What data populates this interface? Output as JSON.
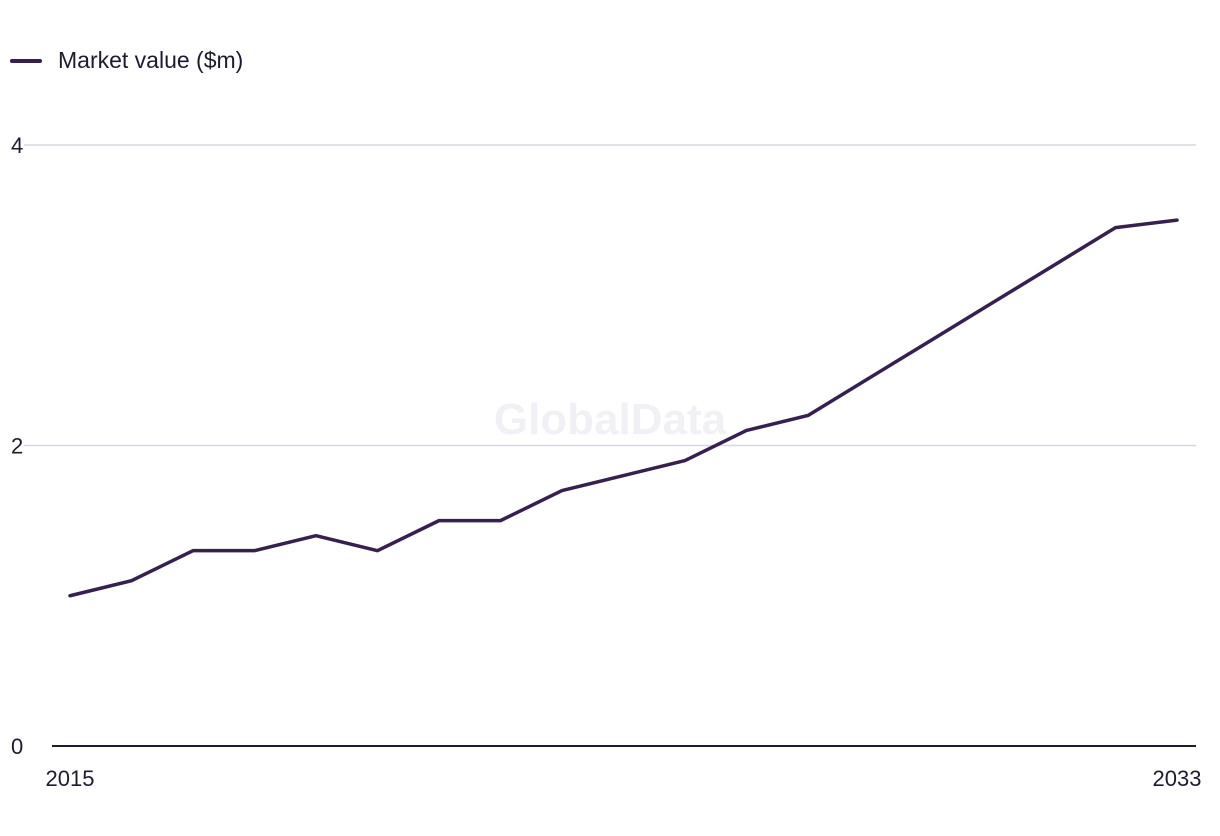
{
  "legend": {
    "label": "Market value ($m)"
  },
  "watermark": "GlobalData",
  "colors": {
    "series": "#35204f",
    "grid": "#d8d6df",
    "axis": "#1f1b2e"
  },
  "chart_data": {
    "type": "line",
    "title": "",
    "xlabel": "",
    "ylabel": "",
    "x": [
      2015,
      2016,
      2017,
      2018,
      2019,
      2020,
      2021,
      2022,
      2023,
      2024,
      2025,
      2026,
      2027,
      2028,
      2029,
      2030,
      2031,
      2032,
      2033
    ],
    "series": [
      {
        "name": "Market value ($m)",
        "values": [
          1.0,
          1.1,
          1.3,
          1.3,
          1.4,
          1.3,
          1.5,
          1.5,
          1.7,
          1.8,
          1.9,
          2.1,
          2.2,
          2.45,
          2.7,
          2.95,
          3.2,
          3.45,
          3.5
        ]
      }
    ],
    "ylim": [
      0,
      4
    ],
    "y_ticks": [
      "0",
      "2",
      "4"
    ],
    "x_tick_labels": [
      "2015",
      "2033"
    ],
    "grid": true,
    "legend_position": "top-left"
  }
}
